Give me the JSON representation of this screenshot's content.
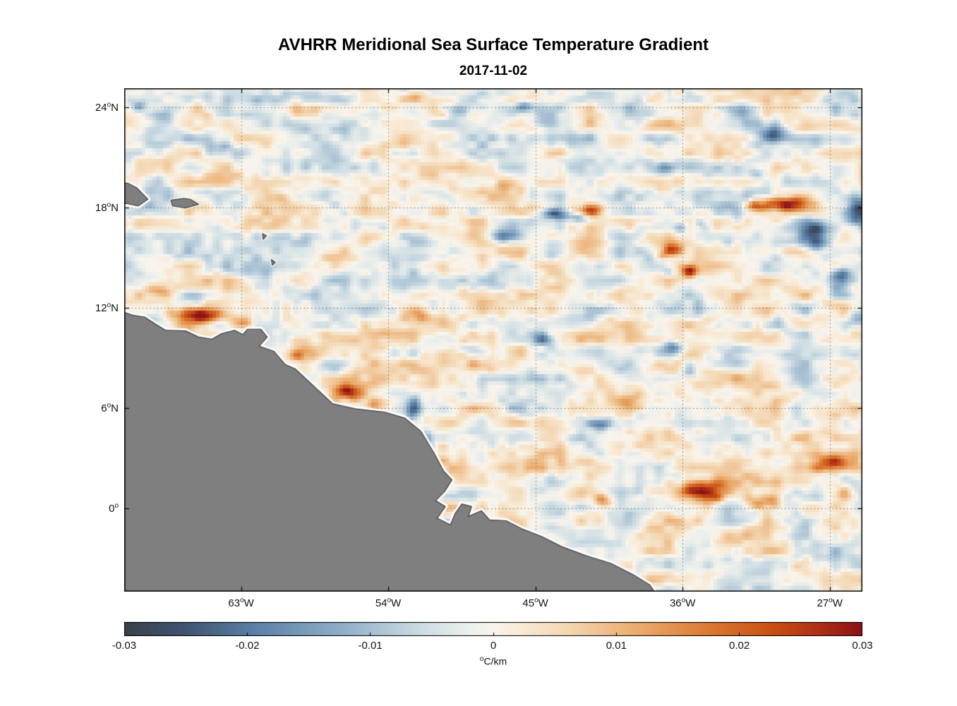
{
  "chart_data": {
    "type": "heatmap",
    "title": "AVHRR Meridional Sea Surface Temperature Gradient",
    "subtitle": "2017-11-02",
    "degree_symbol": "o",
    "lon_range": [
      -70.15,
      -25.0
    ],
    "lat_range": [
      -5.0,
      25.15
    ],
    "grid": true,
    "xticks": [
      {
        "deg": "63",
        "hem": "W",
        "lon": -63
      },
      {
        "deg": "54",
        "hem": "W",
        "lon": -54
      },
      {
        "deg": "45",
        "hem": "W",
        "lon": -45
      },
      {
        "deg": "36",
        "hem": "W",
        "lon": -36
      },
      {
        "deg": "27",
        "hem": "W",
        "lon": -27
      }
    ],
    "yticks": [
      {
        "deg": "24",
        "hem": "N",
        "lat": 24
      },
      {
        "deg": "18",
        "hem": "N",
        "lat": 18
      },
      {
        "deg": "12",
        "hem": "N",
        "lat": 12
      },
      {
        "deg": "6",
        "hem": "N",
        "lat": 6
      },
      {
        "deg": "0",
        "hem": "",
        "lat": 0
      }
    ],
    "land_color": "#7f7f7f",
    "coast_halo_color": "#ffffff",
    "land_edge_color": "#3f3f3f",
    "colorbar": {
      "min": -0.03,
      "max": 0.03,
      "orientation": "horizontal",
      "unit_sup": "o",
      "unit_text": "C/km",
      "ticks": [
        {
          "label": "-0.03",
          "value": -0.03
        },
        {
          "label": "-0.02",
          "value": -0.02
        },
        {
          "label": "-0.01",
          "value": -0.01
        },
        {
          "label": "0",
          "value": 0
        },
        {
          "label": "0.01",
          "value": 0.01
        },
        {
          "label": "0.02",
          "value": 0.02
        },
        {
          "label": "0.03",
          "value": 0.03
        }
      ],
      "stops": [
        {
          "t": 0.0,
          "color": "#3a414d"
        },
        {
          "t": 0.08,
          "color": "#40536e"
        },
        {
          "t": 0.18,
          "color": "#5c82a8"
        },
        {
          "t": 0.3,
          "color": "#93b1c9"
        },
        {
          "t": 0.4,
          "color": "#cbdbe2"
        },
        {
          "t": 0.47,
          "color": "#eef0ec"
        },
        {
          "t": 0.5,
          "color": "#f9f4ec"
        },
        {
          "t": 0.53,
          "color": "#f8ecd9"
        },
        {
          "t": 0.6,
          "color": "#f3d7b3"
        },
        {
          "t": 0.7,
          "color": "#eaa96a"
        },
        {
          "t": 0.8,
          "color": "#da7430"
        },
        {
          "t": 0.88,
          "color": "#c84f12"
        },
        {
          "t": 0.94,
          "color": "#b03018"
        },
        {
          "t": 1.0,
          "color": "#8c1216"
        }
      ]
    },
    "noise": {
      "octave1": {
        "scale_lon": 2.2,
        "scale_lat": 0.85,
        "amp": 0.0085
      },
      "octave2": {
        "scale_lon": 0.6,
        "scale_lat": 0.45,
        "amp": 0.0045
      }
    },
    "features_format": [
      "lon",
      "lat",
      "sigma_lon_deg",
      "sigma_lat_deg",
      "amplitude_C_per_km"
    ],
    "features": [
      [
        -65.6,
        11.55,
        1.5,
        0.45,
        0.03
      ],
      [
        -63.1,
        11.1,
        0.8,
        0.35,
        0.016
      ],
      [
        -67.9,
        13.1,
        0.9,
        0.5,
        0.013
      ],
      [
        -56.4,
        6.9,
        1.0,
        0.45,
        0.026
      ],
      [
        -54.8,
        6.2,
        0.8,
        0.4,
        0.012
      ],
      [
        -36.9,
        15.4,
        0.8,
        0.5,
        0.027
      ],
      [
        -35.6,
        14.2,
        0.5,
        0.4,
        0.021
      ],
      [
        -29.6,
        18.25,
        1.4,
        0.4,
        0.026
      ],
      [
        -31.6,
        18.1,
        0.6,
        0.35,
        0.016
      ],
      [
        -34.6,
        1.0,
        1.6,
        0.7,
        0.026
      ],
      [
        -31.0,
        0.3,
        1.0,
        0.5,
        0.016
      ],
      [
        -27.0,
        2.7,
        1.4,
        0.6,
        0.021
      ],
      [
        -26.2,
        0.9,
        1.0,
        0.5,
        0.019
      ],
      [
        -40.8,
        0.4,
        0.6,
        0.4,
        0.018
      ],
      [
        -41.6,
        17.8,
        0.7,
        0.35,
        0.015
      ],
      [
        -59.2,
        9.2,
        1.0,
        0.5,
        0.011
      ],
      [
        -46.8,
        19.3,
        0.9,
        0.45,
        0.01
      ],
      [
        -39.3,
        6.4,
        0.9,
        0.4,
        0.011
      ],
      [
        -44.5,
        2.5,
        2.2,
        0.6,
        0.011
      ],
      [
        -48.5,
        8.6,
        1.0,
        0.45,
        0.01
      ],
      [
        -52.2,
        11.6,
        0.9,
        0.45,
        0.01
      ],
      [
        -33.2,
        7.9,
        1.1,
        0.5,
        0.011
      ],
      [
        -38.3,
        12.0,
        1.0,
        0.5,
        0.009
      ],
      [
        -52.5,
        24.6,
        0.8,
        0.35,
        0.01
      ],
      [
        -60.5,
        18.6,
        0.8,
        0.4,
        0.009
      ],
      [
        -43.6,
        17.6,
        0.8,
        0.4,
        -0.026
      ],
      [
        -42.3,
        17.4,
        0.6,
        0.3,
        -0.016
      ],
      [
        -47.1,
        16.3,
        0.9,
        0.35,
        -0.021
      ],
      [
        -27.9,
        16.3,
        0.9,
        0.9,
        -0.025
      ],
      [
        -26.4,
        13.9,
        0.7,
        0.6,
        -0.019
      ],
      [
        -25.3,
        17.8,
        0.6,
        0.8,
        -0.021
      ],
      [
        -30.6,
        22.4,
        0.8,
        0.5,
        -0.014
      ],
      [
        -32.4,
        23.8,
        0.9,
        0.5,
        -0.016
      ],
      [
        -37.3,
        20.4,
        0.9,
        0.4,
        -0.016
      ],
      [
        -49.6,
        23.9,
        0.9,
        0.35,
        -0.016
      ],
      [
        -45.6,
        24.1,
        0.5,
        0.3,
        -0.012
      ],
      [
        -52.4,
        5.8,
        0.45,
        0.9,
        -0.022
      ],
      [
        -51.6,
        3.8,
        0.4,
        0.8,
        -0.019
      ],
      [
        -44.5,
        10.1,
        0.8,
        0.4,
        -0.019
      ],
      [
        -41.0,
        5.0,
        0.6,
        0.35,
        -0.012
      ],
      [
        -36.6,
        9.6,
        0.6,
        0.4,
        -0.015
      ],
      [
        -35.6,
        8.1,
        0.5,
        0.4,
        -0.013
      ],
      [
        -25.4,
        11.5,
        0.6,
        0.5,
        -0.017
      ],
      [
        -69.3,
        24.1,
        0.7,
        0.4,
        -0.011
      ],
      [
        -64.5,
        21.6,
        0.9,
        0.5,
        -0.009
      ],
      [
        -67.3,
        23.6,
        1.1,
        0.5,
        -0.01
      ],
      [
        -36.1,
        16.8,
        0.5,
        0.35,
        -0.016
      ],
      [
        -30.0,
        11.0,
        0.7,
        0.5,
        -0.011
      ],
      [
        -31.5,
        20.1,
        0.6,
        0.4,
        -0.011
      ],
      [
        -34.9,
        16.9,
        0.5,
        0.35,
        -0.014
      ]
    ],
    "land_polygons": [
      [
        [
          -70.8,
          11.95
        ],
        [
          -69.6,
          11.55
        ],
        [
          -68.9,
          11.45
        ],
        [
          -68.2,
          11.0
        ],
        [
          -67.6,
          10.65
        ],
        [
          -66.4,
          10.62
        ],
        [
          -65.6,
          10.25
        ],
        [
          -64.8,
          10.12
        ],
        [
          -64.2,
          10.45
        ],
        [
          -63.4,
          10.65
        ],
        [
          -62.9,
          10.4
        ],
        [
          -62.6,
          10.72
        ],
        [
          -61.8,
          10.72
        ],
        [
          -61.4,
          10.25
        ],
        [
          -61.9,
          9.7
        ],
        [
          -61.0,
          9.4
        ],
        [
          -60.3,
          8.6
        ],
        [
          -59.7,
          8.35
        ],
        [
          -58.6,
          7.35
        ],
        [
          -57.4,
          6.25
        ],
        [
          -56.0,
          5.95
        ],
        [
          -54.2,
          5.75
        ],
        [
          -53.0,
          5.4
        ],
        [
          -52.0,
          4.6
        ],
        [
          -51.2,
          3.3
        ],
        [
          -50.6,
          2.2
        ],
        [
          -50.1,
          1.7
        ],
        [
          -50.55,
          1.0
        ],
        [
          -51.1,
          0.45
        ],
        [
          -50.5,
          0.1
        ],
        [
          -51.0,
          -0.6
        ],
        [
          -50.2,
          -1.0
        ],
        [
          -49.9,
          -0.3
        ],
        [
          -49.5,
          0.25
        ],
        [
          -48.9,
          0.1
        ],
        [
          -49.1,
          -0.5
        ],
        [
          -48.3,
          -0.15
        ],
        [
          -47.8,
          -0.7
        ],
        [
          -46.8,
          -0.75
        ],
        [
          -45.8,
          -1.25
        ],
        [
          -44.6,
          -1.7
        ],
        [
          -43.4,
          -2.3
        ],
        [
          -41.9,
          -2.85
        ],
        [
          -40.4,
          -3.3
        ],
        [
          -39.0,
          -4.0
        ],
        [
          -38.0,
          -4.6
        ],
        [
          -37.3,
          -5.6
        ],
        [
          -70.8,
          -5.6
        ]
      ],
      [
        [
          -70.8,
          19.6
        ],
        [
          -69.9,
          19.45
        ],
        [
          -69.4,
          19.2
        ],
        [
          -68.7,
          18.5
        ],
        [
          -69.3,
          18.1
        ],
        [
          -70.0,
          18.25
        ],
        [
          -70.8,
          18.2
        ]
      ],
      [
        [
          -67.3,
          18.45
        ],
        [
          -66.5,
          18.55
        ],
        [
          -66.1,
          18.5
        ],
        [
          -65.6,
          18.2
        ],
        [
          -66.4,
          17.98
        ],
        [
          -67.2,
          18.1
        ]
      ],
      [
        [
          -61.7,
          16.45
        ],
        [
          -61.45,
          16.32
        ],
        [
          -61.65,
          16.1
        ]
      ],
      [
        [
          -61.15,
          14.9
        ],
        [
          -60.9,
          14.72
        ],
        [
          -61.1,
          14.55
        ]
      ]
    ]
  }
}
